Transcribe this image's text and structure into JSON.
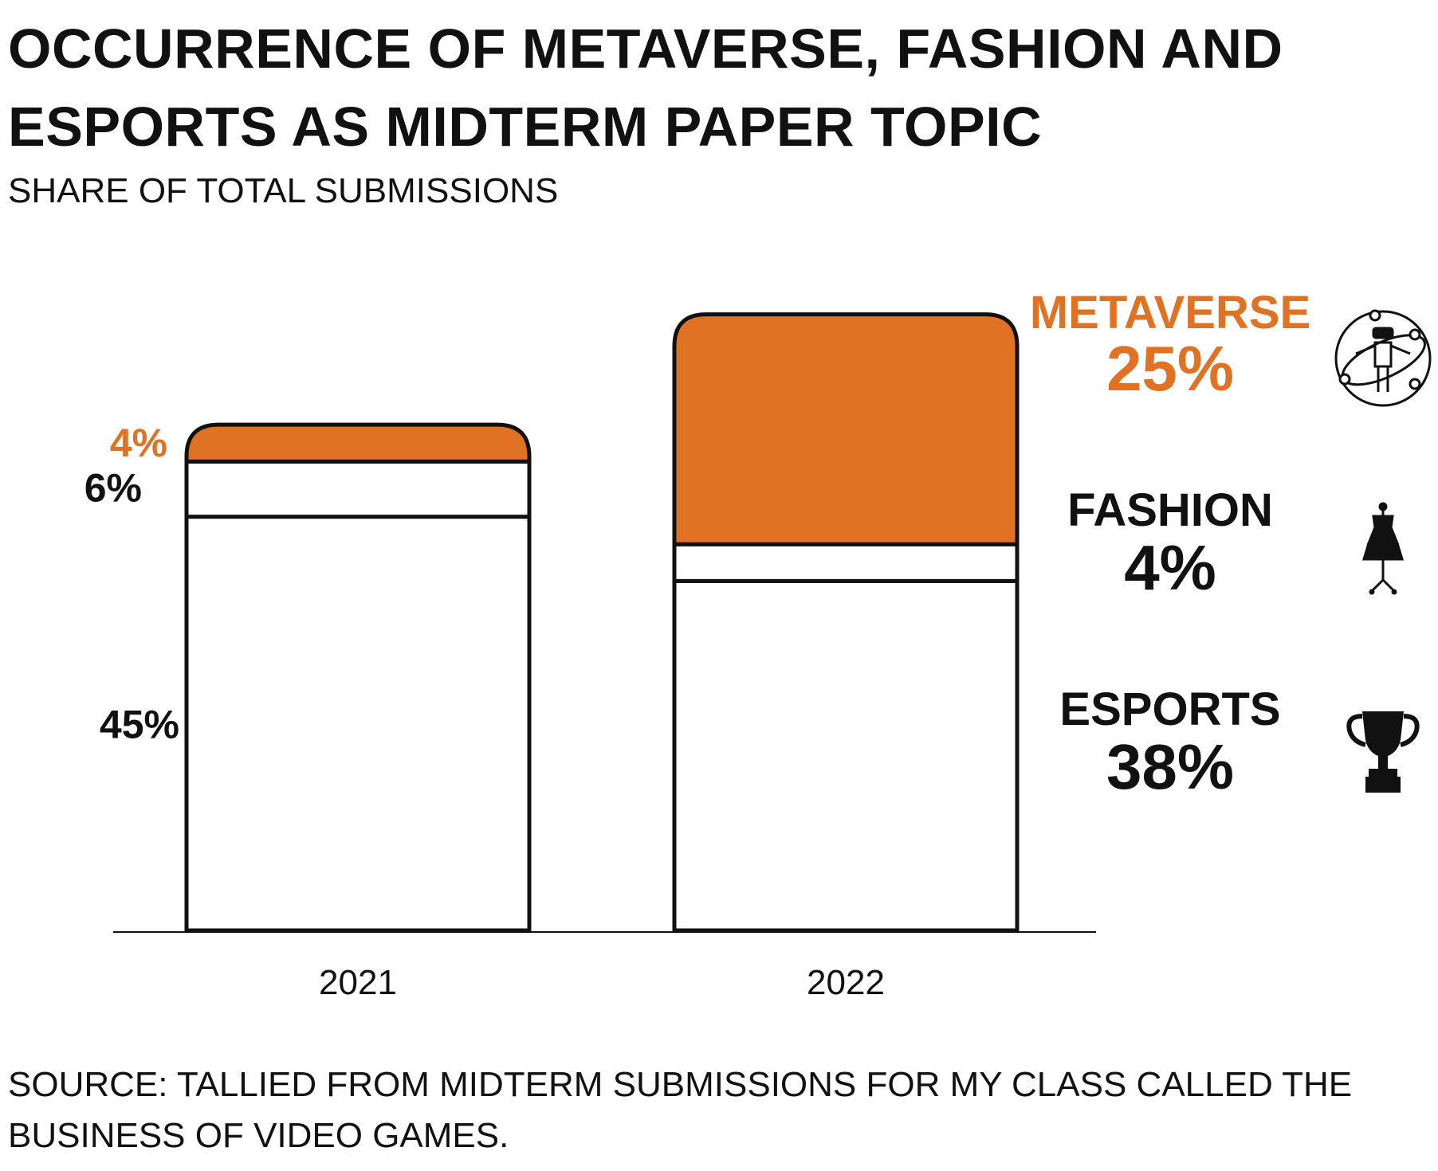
{
  "title": "OCCURRENCE OF METAVERSE, FASHION AND ESPORTS AS MIDTERM PAPER TOPIC",
  "subtitle": "SHARE OF TOTAL SUBMISSIONS",
  "source": "SOURCE: TALLIED FROM MIDTERM SUBMISSIONS FOR MY CLASS CALLED THE BUSINESS OF VIDEO GAMES.",
  "colors": {
    "metaverse": "#e07224",
    "text": "#111111",
    "outline": "#111111"
  },
  "icons": {
    "metaverse": "vr-person-orbit-icon",
    "fashion": "dress-form-icon",
    "esports": "trophy-icon"
  },
  "chart_data": {
    "type": "bar",
    "stacked": true,
    "categories": [
      "2021",
      "2022"
    ],
    "series": [
      {
        "name": "ESPORTS",
        "values": [
          45,
          38
        ],
        "color": "#ffffff"
      },
      {
        "name": "FASHION",
        "values": [
          6,
          4
        ],
        "color": "#ffffff"
      },
      {
        "name": "METAVERSE",
        "values": [
          4,
          25
        ],
        "color": "#e07224"
      }
    ],
    "data_labels_2021": [
      "45%",
      "6%",
      "4%"
    ],
    "legend": [
      {
        "name": "METAVERSE",
        "value_label": "25%",
        "color": "#e07224"
      },
      {
        "name": "FASHION",
        "value_label": "4%",
        "color": "#111111"
      },
      {
        "name": "ESPORTS",
        "value_label": "38%",
        "color": "#111111"
      }
    ],
    "legend_position": "right",
    "ylim": [
      0,
      70
    ],
    "grid": false
  }
}
